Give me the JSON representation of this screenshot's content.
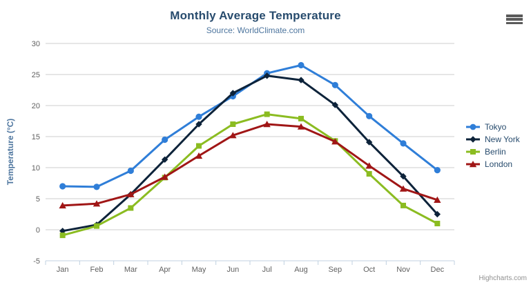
{
  "header": {
    "title": "Monthly Average Temperature",
    "subtitle": "Source: WorldClimate.com"
  },
  "export_menu": {
    "icon": "hamburger-menu-icon"
  },
  "credits": {
    "label": "Highcharts.com"
  },
  "colors": {
    "title": "#274b6d",
    "subtitle": "#4d759e",
    "axis_title": "#4d759e",
    "tick_label": "#606060",
    "grid_line": "#cccccc",
    "axis_line": "#c0d0e0",
    "legend_text": "#274b6d",
    "credits_text": "#909090",
    "background": "#ffffff"
  },
  "chart_data": {
    "type": "line",
    "title": "Monthly Average Temperature",
    "subtitle": "Source: WorldClimate.com",
    "xlabel": "",
    "ylabel": "Temperature (°C)",
    "categories": [
      "Jan",
      "Feb",
      "Mar",
      "Apr",
      "May",
      "Jun",
      "Jul",
      "Aug",
      "Sep",
      "Oct",
      "Nov",
      "Dec"
    ],
    "ylim": [
      -5,
      30
    ],
    "y_ticks": [
      -5,
      0,
      5,
      10,
      15,
      20,
      25,
      30
    ],
    "grid": true,
    "legend_position": "right",
    "series": [
      {
        "name": "Tokyo",
        "color": "#2f7ed8",
        "marker": "circle",
        "values": [
          7.0,
          6.9,
          9.5,
          14.5,
          18.2,
          21.5,
          25.2,
          26.5,
          23.3,
          18.3,
          13.9,
          9.6
        ]
      },
      {
        "name": "New York",
        "color": "#0d233a",
        "marker": "diamond",
        "values": [
          -0.2,
          0.8,
          5.7,
          11.3,
          17.0,
          22.0,
          24.8,
          24.1,
          20.1,
          14.1,
          8.6,
          2.5
        ]
      },
      {
        "name": "Berlin",
        "color": "#8bbc21",
        "marker": "square",
        "values": [
          -0.9,
          0.6,
          3.5,
          8.4,
          13.5,
          17.0,
          18.6,
          17.9,
          14.3,
          9.0,
          3.9,
          1.0
        ]
      },
      {
        "name": "London",
        "color": "#a01616",
        "marker": "triangle",
        "values": [
          3.9,
          4.2,
          5.7,
          8.5,
          11.9,
          15.2,
          17.0,
          16.6,
          14.2,
          10.3,
          6.6,
          4.8
        ]
      }
    ]
  }
}
